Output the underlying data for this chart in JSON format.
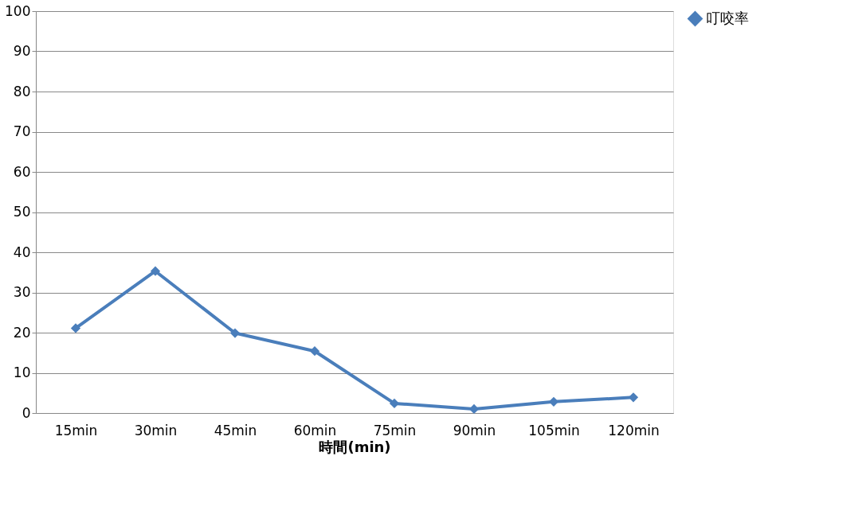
{
  "chart_data": {
    "type": "line",
    "xlabel": "時間(min)",
    "categories": [
      "15min",
      "30min",
      "45min",
      "60min",
      "75min",
      "90min",
      "105min",
      "120min"
    ],
    "series": [
      {
        "name": "叮咬率",
        "color": "#4a7ebb",
        "values": [
          21.1,
          35.3,
          19.9,
          15.4,
          2.4,
          1.0,
          2.8,
          3.9
        ]
      }
    ],
    "ylim": [
      0,
      100
    ],
    "yticks": [
      0,
      10,
      20,
      30,
      40,
      50,
      60,
      70,
      80,
      90,
      100
    ],
    "grid": "y",
    "legend": "right",
    "marker": "diamond",
    "line_style": "solid"
  }
}
